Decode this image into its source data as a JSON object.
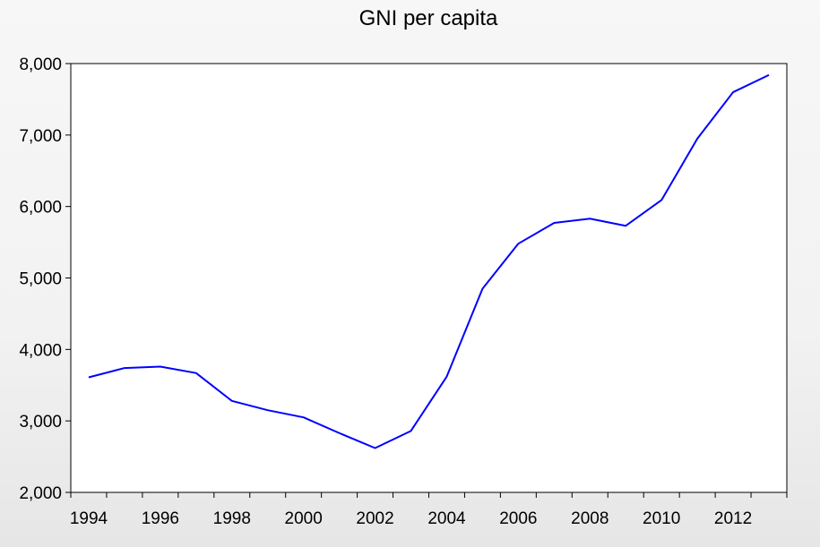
{
  "chart_data": {
    "type": "line",
    "title": "GNI per capita",
    "xlabel": "",
    "ylabel": "",
    "x": [
      1994,
      1995,
      1996,
      1997,
      1998,
      1999,
      2000,
      2001,
      2002,
      2003,
      2004,
      2005,
      2006,
      2007,
      2008,
      2009,
      2010,
      2011,
      2012,
      2013
    ],
    "series": [
      {
        "color": "#0000ff",
        "values": [
          3610,
          3740,
          3760,
          3670,
          3280,
          3150,
          3050,
          2830,
          2620,
          2860,
          3620,
          4850,
          5480,
          5770,
          5830,
          5730,
          6090,
          6950,
          7600,
          7840
        ]
      }
    ],
    "xlim": [
      1993.5,
      2013.5
    ],
    "ylim": [
      2000,
      8000
    ],
    "yticks": [
      2000,
      3000,
      4000,
      5000,
      6000,
      7000,
      8000
    ],
    "ytick_labels": [
      "2,000",
      "3,000",
      "4,000",
      "5,000",
      "6,000",
      "7,000",
      "8,000"
    ],
    "xtick_labels": [
      "1994",
      "1996",
      "1998",
      "2000",
      "2002",
      "2004",
      "2006",
      "2008",
      "2010",
      "2012"
    ],
    "grid": false,
    "legend": "none"
  }
}
